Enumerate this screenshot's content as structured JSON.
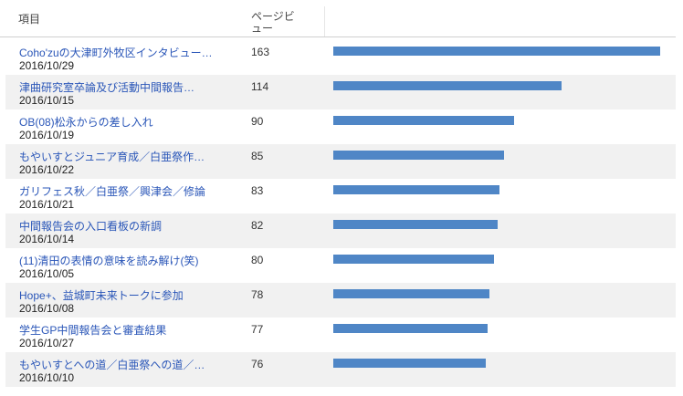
{
  "header": {
    "item_label": "項目",
    "pageviews_label": "ページビュー"
  },
  "max_pageviews": 163,
  "rows": [
    {
      "title": "Coho'zuの大津町外牧区インタビュー…",
      "date": "2016/10/29",
      "pageviews": 163
    },
    {
      "title": "津曲研究室卒論及び活動中間報告…",
      "date": "2016/10/15",
      "pageviews": 114
    },
    {
      "title": "OB(08)松永からの差し入れ",
      "date": "2016/10/19",
      "pageviews": 90
    },
    {
      "title": "もやいすとジュニア育成／白亜祭作…",
      "date": "2016/10/22",
      "pageviews": 85
    },
    {
      "title": "ガリフェス秋／白亜祭／興津会／修論",
      "date": "2016/10/21",
      "pageviews": 83
    },
    {
      "title": "中間報告会の入口看板の新調",
      "date": "2016/10/14",
      "pageviews": 82
    },
    {
      "title": "(11)清田の表情の意味を読み解け(笑)",
      "date": "2016/10/05",
      "pageviews": 80
    },
    {
      "title": "Hope+、益城町未来トークに参加",
      "date": "2016/10/08",
      "pageviews": 78
    },
    {
      "title": "学生GP中間報告会と審査結果",
      "date": "2016/10/27",
      "pageviews": 77
    },
    {
      "title": "もやいすとへの道／白亜祭への道／…",
      "date": "2016/10/10",
      "pageviews": 76
    }
  ]
}
